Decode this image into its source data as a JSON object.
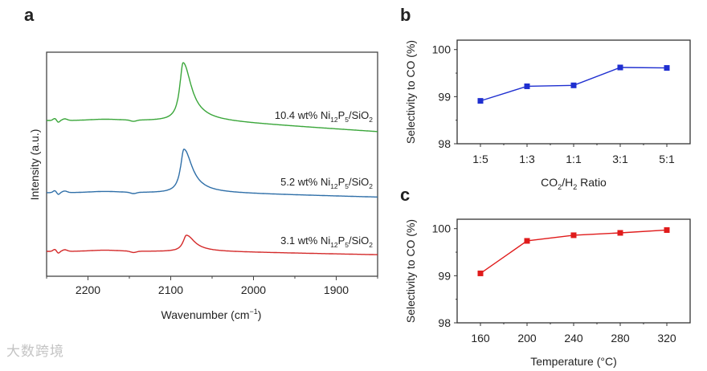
{
  "watermark": "大数跨境",
  "chart_data": [
    {
      "panel": "a",
      "type": "line",
      "xlabel": "Wavenumber (cm⁻¹)",
      "xlabel_main": "Wavenumber (cm",
      "xlabel_sup": "−1",
      "xlabel_close": ")",
      "ylabel": "Intensity (a.u.)",
      "xlim": [
        2250,
        1850
      ],
      "ylim": [
        0,
        100
      ],
      "xticks": [
        2200,
        2100,
        2000,
        1900
      ],
      "xtick_labels": [
        "2200",
        "2100",
        "2000",
        "1900"
      ],
      "series": [
        {
          "name": "10.4 wt% Ni12P5/SiO2",
          "label_parts": [
            "10.4 wt% Ni",
            "12",
            "P",
            "5",
            "/SiO",
            "2"
          ],
          "color": "#3aa63a",
          "baseline": 69.5,
          "end_drop": 5,
          "peak_center": 2085,
          "peak_height": 25.8
        },
        {
          "name": "5.2 wt% Ni12P5/SiO2",
          "label_parts": [
            "5.2 wt% Ni",
            "12",
            "P",
            "5",
            "/SiO",
            "2"
          ],
          "color": "#2f6fa8",
          "baseline": 37.3,
          "end_drop": 2,
          "peak_center": 2084,
          "peak_height": 19.4
        },
        {
          "name": "3.1 wt% Ni12P5/SiO2",
          "label_parts": [
            "3.1 wt% Ni",
            "12",
            "P",
            "5",
            "/SiO",
            "2"
          ],
          "color": "#d42a2a",
          "baseline": 11.1,
          "end_drop": 1.5,
          "peak_center": 2081,
          "peak_height": 7.2
        }
      ]
    },
    {
      "panel": "b",
      "type": "line",
      "xlabel": "CO2/H2 Ratio",
      "xlabel_parts": [
        "CO",
        "2",
        "/H",
        "2",
        " Ratio"
      ],
      "ylabel": "Selectivity to CO (%)",
      "categories": [
        "1:5",
        "1:3",
        "1:1",
        "3:1",
        "5:1"
      ],
      "values": [
        98.91,
        99.22,
        99.24,
        99.62,
        99.61
      ],
      "ylim": [
        98,
        100.2
      ],
      "yticks": [
        98,
        99,
        100
      ],
      "ytick_labels": [
        "98",
        "99",
        "100"
      ],
      "color": "#1f2fd0"
    },
    {
      "panel": "c",
      "type": "line",
      "xlabel": "Temperature (°C)",
      "ylabel": "Selectivity to CO (%)",
      "categories": [
        "160",
        "200",
        "240",
        "280",
        "320"
      ],
      "values": [
        99.05,
        99.74,
        99.86,
        99.91,
        99.97
      ],
      "ylim": [
        98,
        100.2
      ],
      "yticks": [
        98,
        99,
        100
      ],
      "ytick_labels": [
        "98",
        "99",
        "100"
      ],
      "color": "#e01b1b"
    }
  ]
}
